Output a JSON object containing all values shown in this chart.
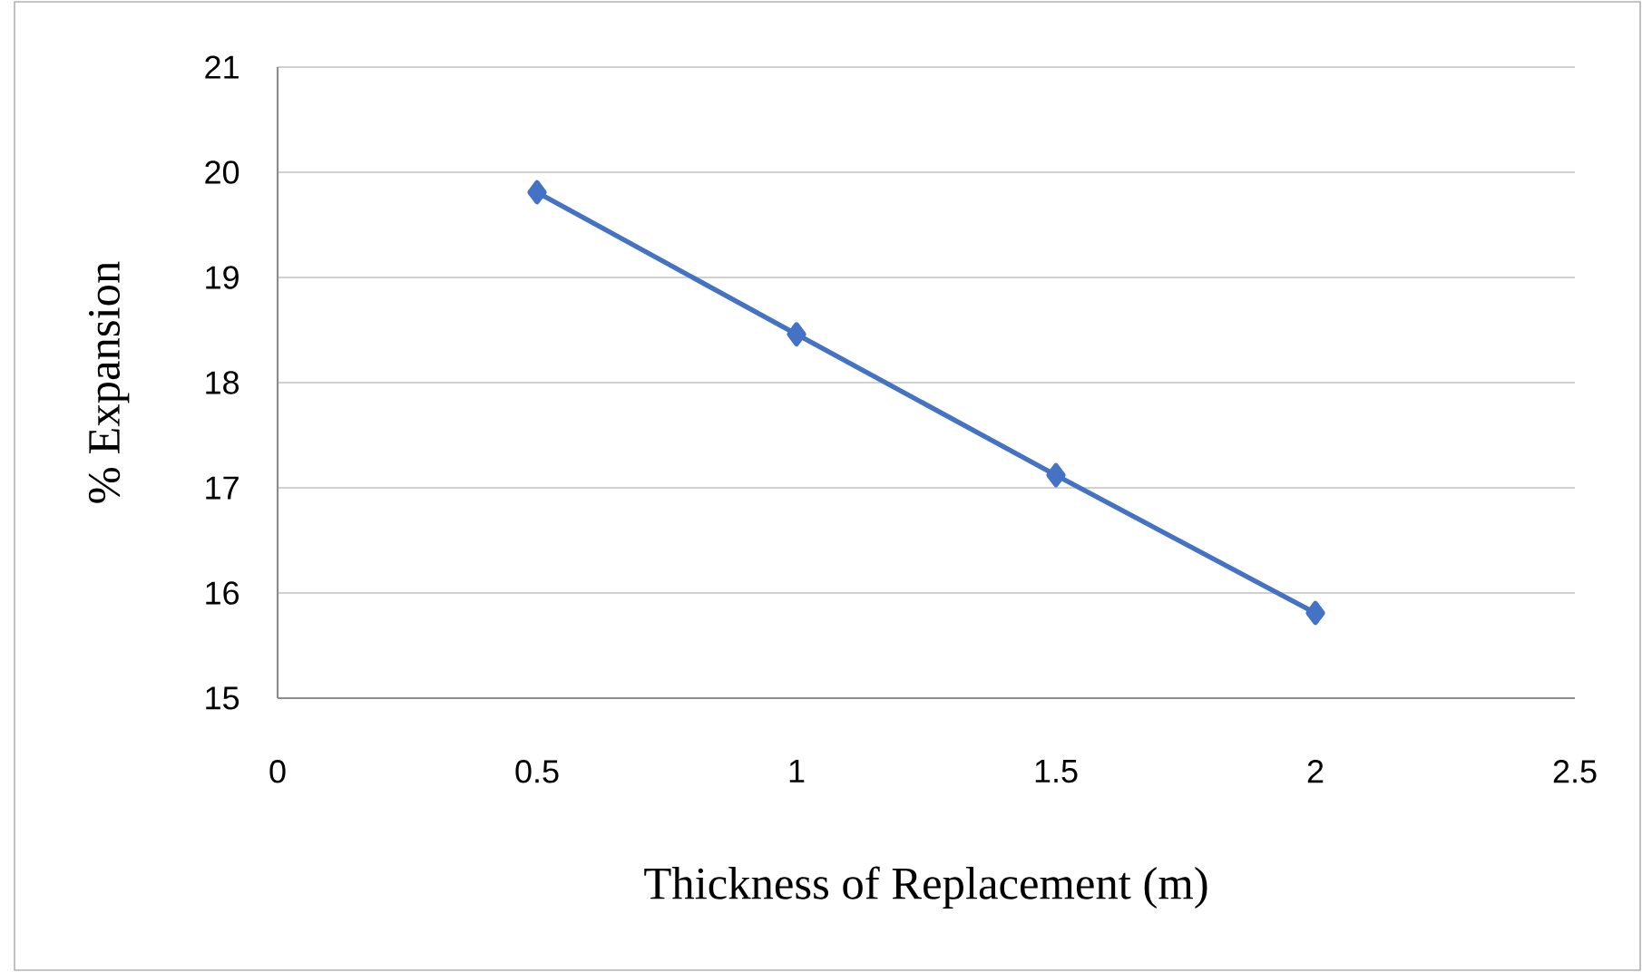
{
  "chart_data": {
    "type": "line",
    "xlabel": "Thickness of Replacement (m)",
    "ylabel": "% Expansion",
    "x": [
      0.5,
      1,
      1.5,
      2
    ],
    "series": [
      {
        "color": "#4472c4",
        "values": [
          19.81,
          18.46,
          17.12,
          15.81
        ]
      }
    ],
    "xlim": [
      0,
      2.5
    ],
    "xticks": [
      0,
      0.5,
      1,
      1.5,
      2,
      2.5
    ],
    "ylim": [
      15,
      21
    ],
    "yticks": [
      15,
      16,
      17,
      18,
      19,
      20,
      21
    ],
    "grid": "y",
    "marker": "diamond",
    "line_style": "solid"
  }
}
